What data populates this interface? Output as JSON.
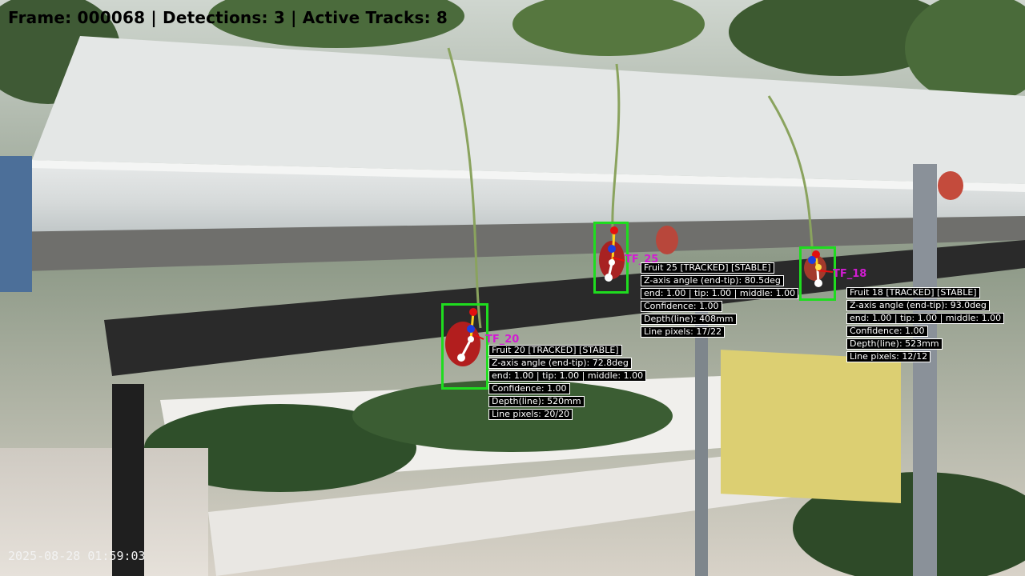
{
  "hud": {
    "text": "Frame: 000068 | Detections: 3 | Active Tracks: 8"
  },
  "timestamp": "2025-08-28 01:59:03",
  "detections": [
    {
      "tf": "TF_20",
      "lines": [
        "Fruit 20 [TRACKED] [STABLE]",
        "Z-axis angle (end-tip): 72.8deg",
        "end: 1.00 | tip: 1.00 | middle: 1.00",
        "Confidence: 1.00",
        "Depth(line): 520mm",
        "Line pixels: 20/20"
      ]
    },
    {
      "tf": "TF_25",
      "lines": [
        "Fruit 25 [TRACKED] [STABLE]",
        "Z-axis angle (end-tip): 80.5deg",
        "end: 1.00 | tip: 1.00 | middle: 1.00",
        "Confidence: 1.00",
        "Depth(line): 408mm",
        "Line pixels: 17/22"
      ]
    },
    {
      "tf": "TF_18",
      "lines": [
        "Fruit 18 [TRACKED] [STABLE]",
        "Z-axis angle (end-tip): 93.0deg",
        "end: 1.00 | tip: 1.00 | middle: 1.00",
        "Confidence: 1.00",
        "Depth(line): 523mm",
        "Line pixels: 12/12"
      ]
    }
  ],
  "colors": {
    "box": "#1fdc1f",
    "tf_label": "#d21cd2"
  }
}
